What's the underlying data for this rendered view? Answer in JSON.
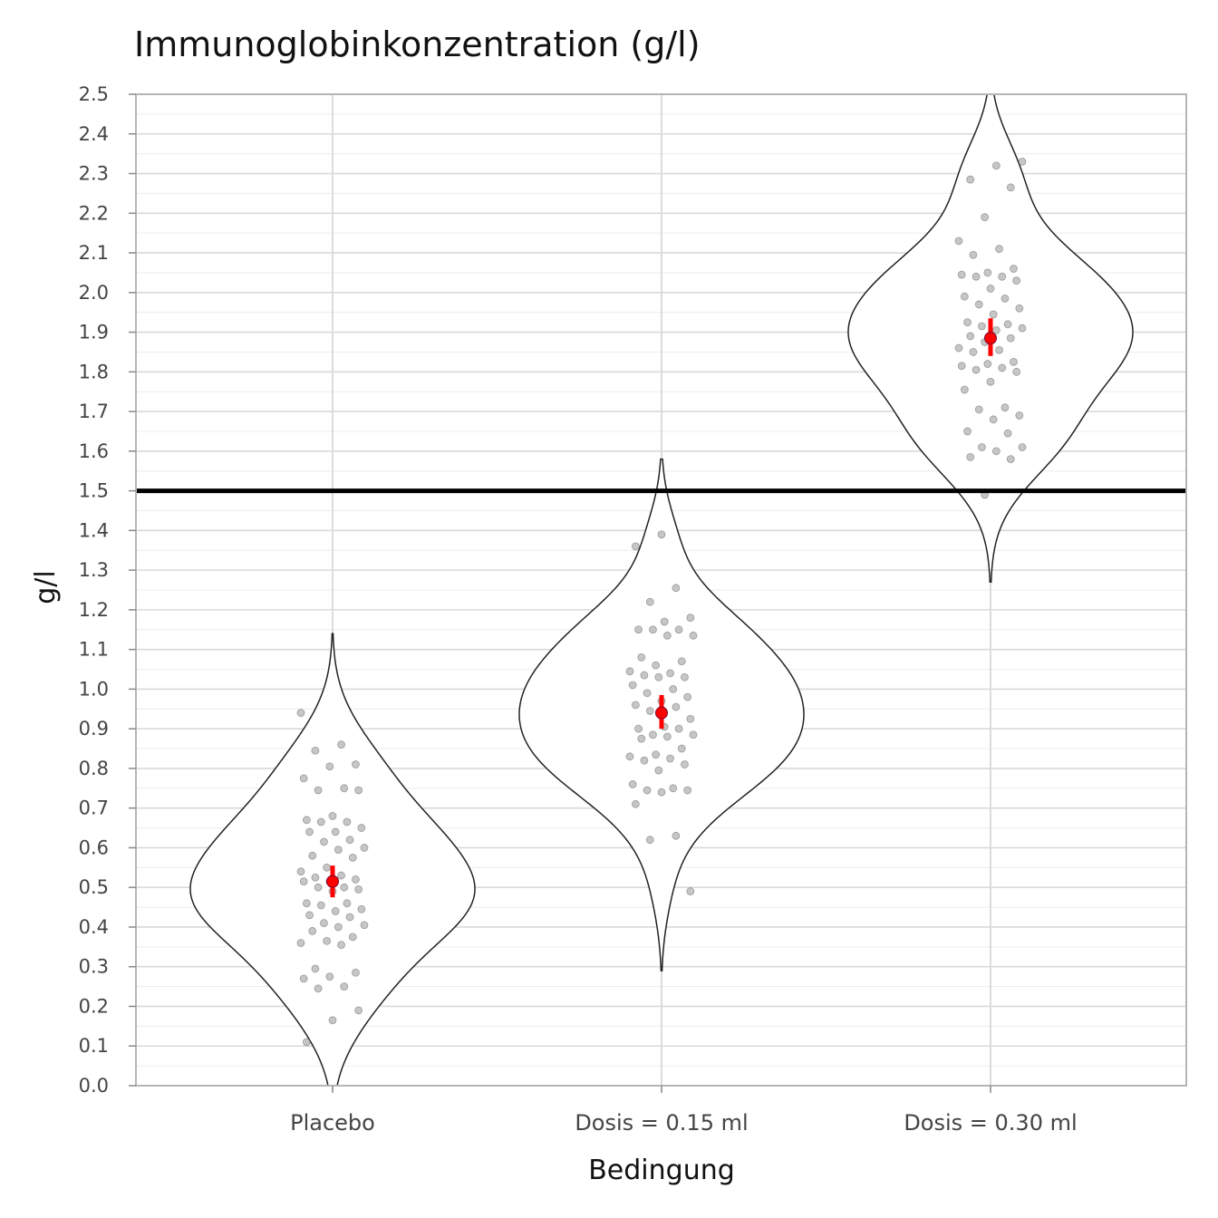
{
  "chart_data": {
    "type": "violin",
    "title": "Immunoglobinkonzentration (g/l)",
    "xlabel": "Bedingung",
    "ylabel": "g/l",
    "ylim": [
      0,
      2.5
    ],
    "ytick_step": 0.1,
    "grid": true,
    "reference_line": {
      "y": 1.5,
      "color": "#000000"
    },
    "colors": {
      "points": "#808080",
      "mean_marker": "#ff0000",
      "violin_outline": "#222222"
    },
    "categories": [
      "Placebo",
      "Dosis = 0.15 ml",
      "Dosis = 0.30 ml"
    ],
    "series": [
      {
        "category": "Placebo",
        "mean": 0.515,
        "ci": [
          0.475,
          0.555
        ],
        "violin_range": [
          0.0,
          1.14
        ],
        "points": [
          0.94,
          0.86,
          0.845,
          0.81,
          0.805,
          0.775,
          0.75,
          0.745,
          0.745,
          0.68,
          0.67,
          0.665,
          0.665,
          0.65,
          0.64,
          0.64,
          0.62,
          0.615,
          0.6,
          0.595,
          0.58,
          0.575,
          0.55,
          0.54,
          0.53,
          0.525,
          0.52,
          0.515,
          0.515,
          0.5,
          0.5,
          0.495,
          0.49,
          0.46,
          0.46,
          0.455,
          0.445,
          0.44,
          0.43,
          0.425,
          0.41,
          0.405,
          0.4,
          0.39,
          0.375,
          0.365,
          0.36,
          0.355,
          0.295,
          0.285,
          0.275,
          0.27,
          0.25,
          0.245,
          0.19,
          0.165,
          0.11
        ]
      },
      {
        "category": "Dosis = 0.15 ml",
        "mean": 0.94,
        "ci": [
          0.9,
          0.985
        ],
        "violin_range": [
          0.29,
          1.58
        ],
        "points": [
          1.39,
          1.36,
          1.255,
          1.22,
          1.18,
          1.17,
          1.15,
          1.15,
          1.15,
          1.135,
          1.135,
          1.08,
          1.07,
          1.06,
          1.045,
          1.04,
          1.035,
          1.03,
          1.03,
          1.01,
          1.0,
          0.99,
          0.98,
          0.97,
          0.96,
          0.955,
          0.945,
          0.925,
          0.905,
          0.9,
          0.9,
          0.885,
          0.885,
          0.88,
          0.875,
          0.85,
          0.835,
          0.83,
          0.825,
          0.82,
          0.81,
          0.795,
          0.76,
          0.75,
          0.745,
          0.745,
          0.74,
          0.71,
          0.63,
          0.62,
          0.49
        ]
      },
      {
        "category": "Dosis = 0.30 ml",
        "mean": 1.885,
        "ci": [
          1.84,
          1.935
        ],
        "violin_range": [
          1.27,
          2.5
        ],
        "points": [
          2.33,
          2.32,
          2.285,
          2.265,
          2.19,
          2.13,
          2.11,
          2.095,
          2.06,
          2.05,
          2.045,
          2.04,
          2.04,
          2.03,
          2.01,
          1.99,
          1.985,
          1.97,
          1.96,
          1.945,
          1.925,
          1.92,
          1.915,
          1.91,
          1.905,
          1.89,
          1.885,
          1.875,
          1.86,
          1.855,
          1.85,
          1.825,
          1.82,
          1.815,
          1.81,
          1.805,
          1.8,
          1.775,
          1.755,
          1.71,
          1.705,
          1.69,
          1.68,
          1.65,
          1.645,
          1.61,
          1.61,
          1.6,
          1.585,
          1.58,
          1.49
        ]
      }
    ]
  }
}
